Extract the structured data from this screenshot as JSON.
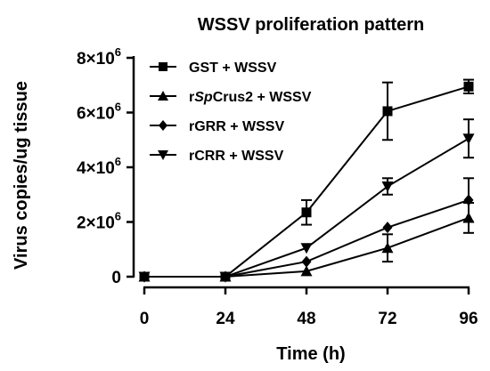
{
  "chart_data": {
    "type": "line",
    "title": "WSSV proliferation pattern",
    "xlabel": "Time (h)",
    "ylabel": "Virus copies/ug tissue",
    "x": [
      0,
      24,
      48,
      72,
      96
    ],
    "x_tick_labels": [
      "0",
      "24",
      "48",
      "72",
      "96"
    ],
    "xlim": [
      0,
      96
    ],
    "y_ticks": [
      0,
      2000000,
      4000000,
      6000000,
      8000000
    ],
    "y_tick_labels": [
      {
        "mantissa": "0",
        "exp": ""
      },
      {
        "mantissa": "2×10",
        "exp": "6"
      },
      {
        "mantissa": "4×10",
        "exp": "6"
      },
      {
        "mantissa": "6×10",
        "exp": "6"
      },
      {
        "mantissa": "8×10",
        "exp": "6"
      }
    ],
    "ylim": [
      0,
      8000000
    ],
    "grid": false,
    "legend_position": "top-left",
    "series": [
      {
        "name": "GST + WSSV",
        "marker": "square",
        "values": [
          0,
          0,
          2350000,
          6050000,
          6950000
        ],
        "errors": [
          0,
          0,
          450000,
          1050000,
          250000
        ]
      },
      {
        "name": "rSpCrus2 + WSSV",
        "name_parts": [
          "r",
          "Sp",
          "Crus2 + WSSV"
        ],
        "marker": "triangle-up",
        "values": [
          0,
          0,
          200000,
          1050000,
          2150000
        ],
        "errors": [
          0,
          0,
          0,
          500000,
          550000
        ]
      },
      {
        "name": "rGRR + WSSV",
        "marker": "diamond",
        "values": [
          0,
          0,
          550000,
          1800000,
          2800000
        ],
        "errors": [
          0,
          0,
          0,
          0,
          800000
        ]
      },
      {
        "name": "rCRR + WSSV",
        "marker": "triangle-down",
        "values": [
          0,
          0,
          1050000,
          3300000,
          5050000
        ],
        "errors": [
          0,
          0,
          0,
          300000,
          700000
        ]
      }
    ]
  }
}
